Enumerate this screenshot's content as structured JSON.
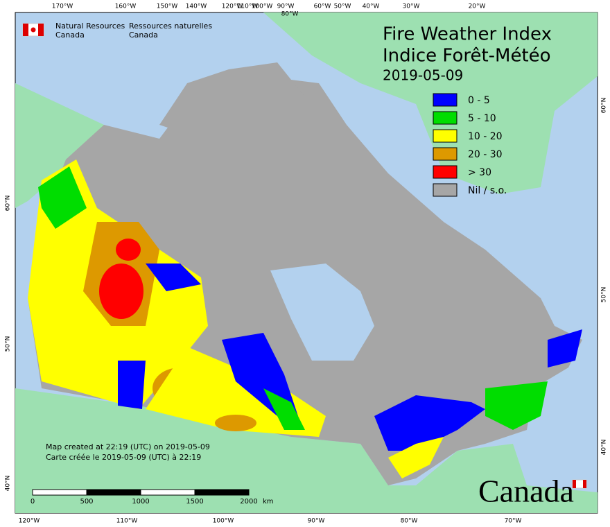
{
  "header": {
    "org_en_1": "Natural Resources",
    "org_en_2": "Canada",
    "org_fr_1": "Ressources naturelles",
    "org_fr_2": "Canada",
    "title_en": "Fire Weather Index",
    "title_fr": "Indice Forêt-Météo",
    "date": "2019-05-09"
  },
  "legend": [
    {
      "label": "0 - 5",
      "color": "#0000ff"
    },
    {
      "label": "5 - 10",
      "color": "#00dd00"
    },
    {
      "label": "10 - 20",
      "color": "#ffff00"
    },
    {
      "label": "20 - 30",
      "color": "#dd9900"
    },
    {
      "label": "> 30",
      "color": "#ff0000"
    },
    {
      "label": "Nil / s.o.",
      "color": "#a6a6a6"
    }
  ],
  "graticule": {
    "top": [
      "170°W",
      "160°W",
      "150°W",
      "140°W",
      "120°W",
      "110°W",
      "100°W",
      "90°W",
      "80°W",
      "60°W",
      "50°W",
      "40°W",
      "30°W",
      "20°W"
    ],
    "bottom": [
      "120°W",
      "110°W",
      "100°W",
      "90°W",
      "80°W",
      "70°W"
    ],
    "left": [
      "60°N",
      "50°N",
      "40°N"
    ],
    "right": [
      "60°N",
      "50°N",
      "40°N"
    ]
  },
  "footer": {
    "created_en": "Map created at 22:19 (UTC) on 2019-05-09",
    "created_fr": "Carte créée le 2019-05-09 (UTC) à 22:19",
    "scale": [
      0,
      500,
      1000,
      1500,
      2000
    ],
    "scale_unit": "km",
    "wordmark": "Canada"
  }
}
